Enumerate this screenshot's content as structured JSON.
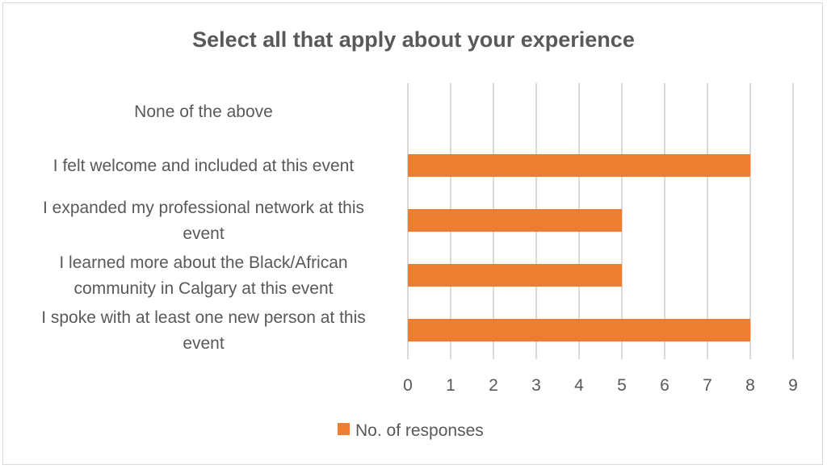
{
  "chart_data": {
    "type": "bar",
    "orientation": "horizontal",
    "title": "Select all that apply about your experience",
    "categories": [
      [
        "None of the above"
      ],
      [
        "I felt welcome and included at this event"
      ],
      [
        "I expanded my professional network at this",
        "event"
      ],
      [
        "I learned more about the Black/African",
        "community in Calgary at this event"
      ],
      [
        "I spoke with at least one new person at this",
        "event"
      ]
    ],
    "series": [
      {
        "name": "No. of responses",
        "values": [
          0,
          8,
          5,
          5,
          8
        ],
        "color": "#ed7d31"
      }
    ],
    "xlim": [
      0,
      9
    ],
    "xticks": [
      0,
      1,
      2,
      3,
      4,
      5,
      6,
      7,
      8,
      9
    ],
    "grid": true,
    "legend_position": "bottom"
  }
}
